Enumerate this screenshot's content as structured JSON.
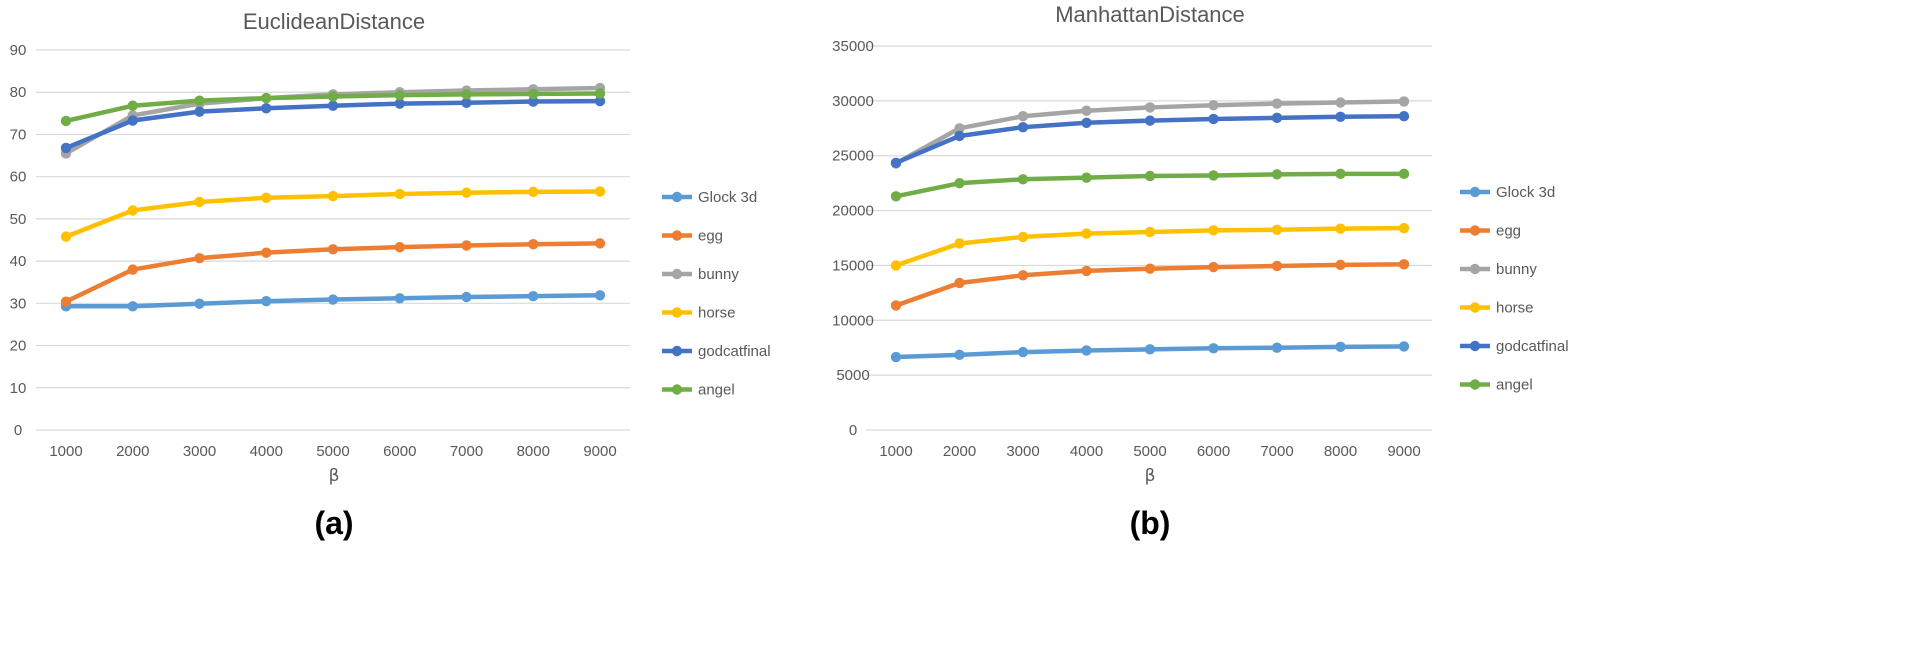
{
  "chart_data": [
    {
      "type": "line",
      "panel_label": "(a)",
      "title": "EuclideanDistance",
      "xlabel": "β",
      "ylabel": "",
      "x": [
        1000,
        2000,
        3000,
        4000,
        5000,
        6000,
        7000,
        8000,
        9000
      ],
      "ylim": [
        0,
        90
      ],
      "yticks": [
        0,
        10,
        20,
        30,
        40,
        50,
        60,
        70,
        80,
        90
      ],
      "grid": true,
      "legend_position": "right",
      "series": [
        {
          "name": "Glock 3d",
          "color": "#5b9bd5",
          "values": [
            29.3,
            29.3,
            29.9,
            30.5,
            30.9,
            31.2,
            31.5,
            31.7,
            31.9
          ]
        },
        {
          "name": "egg",
          "color": "#ed7d31",
          "values": [
            30.4,
            38.0,
            40.7,
            42.0,
            42.8,
            43.3,
            43.7,
            44.0,
            44.2
          ]
        },
        {
          "name": "bunny",
          "color": "#a5a5a5",
          "values": [
            65.5,
            74.5,
            77.3,
            78.6,
            79.5,
            80.0,
            80.4,
            80.7,
            81.0
          ]
        },
        {
          "name": "horse",
          "color": "#ffc000",
          "values": [
            45.8,
            52.0,
            54.0,
            55.0,
            55.4,
            55.9,
            56.2,
            56.4,
            56.5
          ]
        },
        {
          "name": "godcatfinal",
          "color": "#4472c4",
          "values": [
            66.8,
            73.3,
            75.4,
            76.2,
            76.8,
            77.3,
            77.5,
            77.8,
            77.9
          ]
        },
        {
          "name": "angel",
          "color": "#70ad47",
          "values": [
            73.2,
            76.8,
            78.0,
            78.6,
            79.0,
            79.3,
            79.5,
            79.6,
            79.7
          ]
        }
      ]
    },
    {
      "type": "line",
      "panel_label": "(b)",
      "title": "ManhattanDistance",
      "xlabel": "β",
      "ylabel": "",
      "x": [
        1000,
        2000,
        3000,
        4000,
        5000,
        6000,
        7000,
        8000,
        9000
      ],
      "ylim": [
        0,
        35000
      ],
      "yticks": [
        0,
        5000,
        10000,
        15000,
        20000,
        25000,
        30000,
        35000
      ],
      "grid": true,
      "legend_position": "right",
      "series": [
        {
          "name": "Glock 3d",
          "color": "#5b9bd5",
          "values": [
            6650,
            6850,
            7100,
            7250,
            7350,
            7450,
            7500,
            7580,
            7620
          ]
        },
        {
          "name": "egg",
          "color": "#ed7d31",
          "values": [
            11350,
            13400,
            14100,
            14500,
            14700,
            14850,
            14950,
            15050,
            15100
          ]
        },
        {
          "name": "bunny",
          "color": "#a5a5a5",
          "values": [
            24300,
            27500,
            28600,
            29100,
            29400,
            29600,
            29750,
            29850,
            29950
          ]
        },
        {
          "name": "horse",
          "color": "#ffc000",
          "values": [
            15000,
            17000,
            17600,
            17900,
            18050,
            18200,
            18250,
            18350,
            18400
          ]
        },
        {
          "name": "godcatfinal",
          "color": "#4472c4",
          "values": [
            24350,
            26800,
            27600,
            28000,
            28200,
            28350,
            28450,
            28550,
            28600
          ]
        },
        {
          "name": "angel",
          "color": "#70ad47",
          "values": [
            21300,
            22500,
            22850,
            23000,
            23150,
            23200,
            23300,
            23350,
            23350
          ]
        }
      ]
    }
  ]
}
